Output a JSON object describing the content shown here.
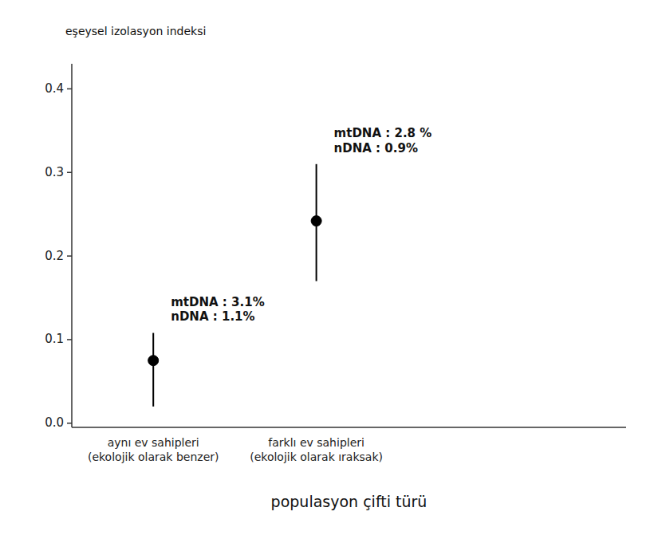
{
  "chart_data": {
    "type": "scatter",
    "categories": [
      "aynı ev sahipleri\n(ekolojik olarak benzer)",
      "farklı ev sahipleri\n(ekolojik olarak ıraksak)"
    ],
    "values": [
      0.075,
      0.242
    ],
    "err_low": [
      0.055,
      0.072
    ],
    "err_high": [
      0.033,
      0.068
    ],
    "xlabel": "populasyon çifti türü",
    "ylabel": "eşeysel izolasyon indeksi",
    "ylim": [
      -0.005,
      0.43
    ],
    "yticks": [
      {
        "value": 0.0,
        "label": "0.0"
      },
      0.1,
      0.2,
      0.3,
      0.4
    ],
    "annotations": [
      "mtDNA : 3.1%\nnDNA : 1.1%",
      "mtDNA : 2.8 %\nnDNA : 0.9%"
    ],
    "color": "#000000"
  }
}
